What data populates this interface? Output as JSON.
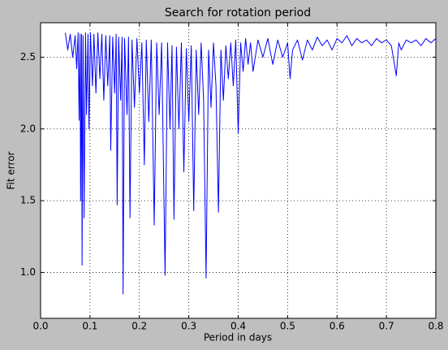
{
  "chart_data": {
    "type": "line",
    "title": "Search for rotation period",
    "x_label": "Period in days",
    "y_label": "Fit error",
    "color": "#0000ff",
    "grid": true,
    "xlim": [
      0,
      0.8
    ],
    "ylim": [
      0.68,
      2.74
    ],
    "xticks": [
      {
        "value": 0,
        "label": "0.0"
      },
      0.1,
      0.2,
      0.3,
      0.4,
      0.5,
      0.6,
      0.7,
      0.8
    ],
    "yticks": [
      {
        "value": 1,
        "label": "1.0"
      },
      1.5,
      {
        "value": 2,
        "label": "2.0"
      },
      2.5
    ],
    "x": [
      0.05,
      0.055,
      0.06,
      0.065,
      0.07,
      0.073,
      0.076,
      0.078,
      0.08,
      0.081,
      0.083,
      0.084,
      0.086,
      0.088,
      0.091,
      0.093,
      0.096,
      0.098,
      0.101,
      0.105,
      0.108,
      0.112,
      0.116,
      0.12,
      0.124,
      0.128,
      0.132,
      0.136,
      0.14,
      0.142,
      0.146,
      0.15,
      0.153,
      0.155,
      0.158,
      0.162,
      0.165,
      0.167,
      0.17,
      0.175,
      0.178,
      0.181,
      0.185,
      0.19,
      0.195,
      0.2,
      0.205,
      0.21,
      0.214,
      0.219,
      0.224,
      0.23,
      0.235,
      0.24,
      0.245,
      0.252,
      0.257,
      0.262,
      0.266,
      0.27,
      0.275,
      0.28,
      0.285,
      0.29,
      0.295,
      0.3,
      0.305,
      0.31,
      0.315,
      0.32,
      0.325,
      0.33,
      0.335,
      0.34,
      0.345,
      0.35,
      0.355,
      0.36,
      0.365,
      0.37,
      0.375,
      0.38,
      0.385,
      0.39,
      0.395,
      0.4,
      0.405,
      0.41,
      0.415,
      0.42,
      0.425,
      0.43,
      0.44,
      0.45,
      0.46,
      0.47,
      0.48,
      0.49,
      0.5,
      0.505,
      0.51,
      0.52,
      0.53,
      0.54,
      0.55,
      0.56,
      0.57,
      0.58,
      0.59,
      0.6,
      0.61,
      0.62,
      0.63,
      0.64,
      0.65,
      0.66,
      0.67,
      0.68,
      0.69,
      0.7,
      0.71,
      0.72,
      0.725,
      0.73,
      0.74,
      0.75,
      0.76,
      0.77,
      0.78,
      0.79,
      0.8
    ],
    "values": [
      2.67,
      2.55,
      2.66,
      2.5,
      2.65,
      2.42,
      2.67,
      2.06,
      2.66,
      1.5,
      2.66,
      1.05,
      2.65,
      1.38,
      2.67,
      2.1,
      2.66,
      2.0,
      2.67,
      2.3,
      2.66,
      2.25,
      2.67,
      2.35,
      2.66,
      2.2,
      2.65,
      2.3,
      2.65,
      1.85,
      2.64,
      2.25,
      2.66,
      1.47,
      2.64,
      2.2,
      2.64,
      0.85,
      2.63,
      2.1,
      2.64,
      1.38,
      2.62,
      2.15,
      2.63,
      2.25,
      2.6,
      1.75,
      2.62,
      2.05,
      2.62,
      1.33,
      2.6,
      2.1,
      2.6,
      0.98,
      2.6,
      2.0,
      2.58,
      1.37,
      2.57,
      2.0,
      2.6,
      1.7,
      2.56,
      2.05,
      2.58,
      1.43,
      2.55,
      2.1,
      2.6,
      2.2,
      0.96,
      2.55,
      2.15,
      2.6,
      2.3,
      1.42,
      2.55,
      2.2,
      2.58,
      2.35,
      2.6,
      2.3,
      2.62,
      1.97,
      2.6,
      2.4,
      2.63,
      2.45,
      2.6,
      2.4,
      2.62,
      2.5,
      2.63,
      2.45,
      2.62,
      2.5,
      2.6,
      2.35,
      2.55,
      2.62,
      2.48,
      2.62,
      2.55,
      2.64,
      2.58,
      2.62,
      2.55,
      2.63,
      2.6,
      2.65,
      2.58,
      2.63,
      2.6,
      2.62,
      2.58,
      2.63,
      2.6,
      2.62,
      2.58,
      2.37,
      2.6,
      2.55,
      2.62,
      2.6,
      2.62,
      2.58,
      2.63,
      2.6,
      2.63
    ]
  }
}
